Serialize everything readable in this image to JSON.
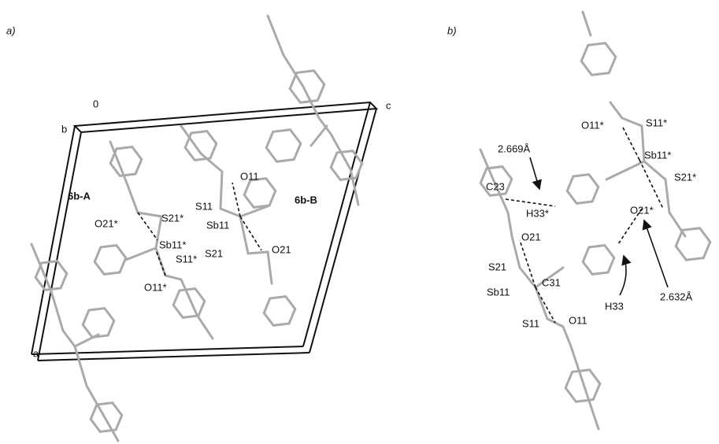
{
  "panels": [
    {
      "label": "a)",
      "labels": [
        "0",
        "b",
        "c",
        "a",
        "6b-A",
        "6b-B",
        "O11",
        "S11",
        "Sb11",
        "S21",
        "O21",
        "O21*",
        "S21*",
        "Sb11*",
        "S11*",
        "O11*"
      ]
    },
    {
      "label": "b)",
      "labels": [
        "O11*",
        "S11*",
        "Sb11*",
        "S21*",
        "2.669Å",
        "C23",
        "H33*",
        "O21*",
        "O21",
        "S21",
        "Sb11",
        "C31",
        "H33",
        "2.632Å",
        "S11",
        "O11"
      ]
    }
  ]
}
